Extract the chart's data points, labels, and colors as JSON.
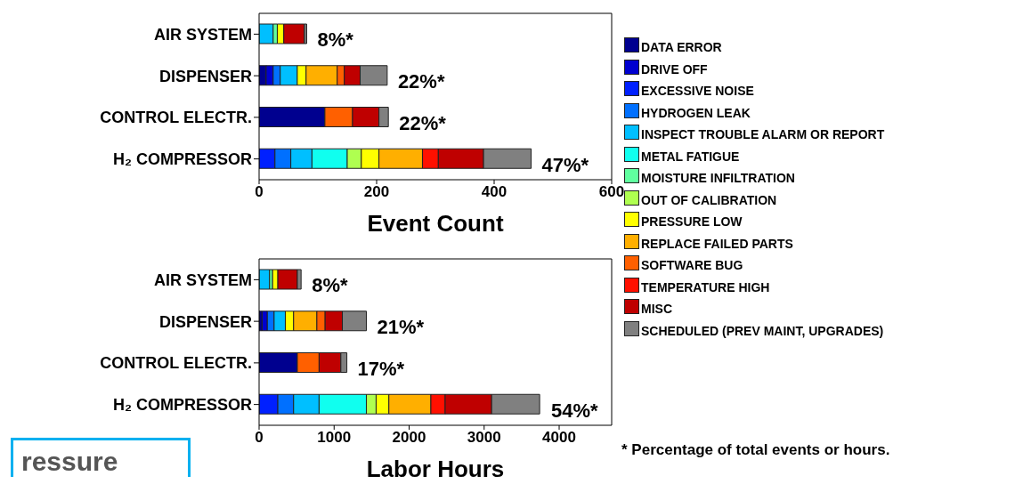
{
  "chart_data": [
    {
      "type": "bar",
      "orientation": "horizontal",
      "stacked": true,
      "xlabel": "Event Count",
      "categories": [
        "AIR SYSTEM",
        "DISPENSER",
        "CONTROL ELECTR.",
        "H₂ COMPRESSOR"
      ],
      "xlim": [
        0,
        600
      ],
      "xticks": [
        0,
        200,
        400,
        600
      ],
      "legend": "right",
      "annotations": [
        {
          "text": "8%*",
          "x": 81,
          "y": "AIR SYSTEM"
        },
        {
          "text": "22%*",
          "x": 218,
          "y": "DISPENSER"
        },
        {
          "text": "22%*",
          "x": 220,
          "y": "CONTROL ELECTR."
        },
        {
          "text": "47%*",
          "x": 463,
          "y": "H₂ COMPRESSOR"
        }
      ],
      "series": [
        {
          "name": "DATA ERROR",
          "color": "#00008f",
          "values": [
            null,
            12,
            112,
            null
          ]
        },
        {
          "name": "DRIVE OFF",
          "color": "#0000d0",
          "values": [
            null,
            12,
            null,
            null
          ]
        },
        {
          "name": "EXCESSIVE NOISE",
          "color": "#0020ff",
          "values": [
            null,
            null,
            null,
            27
          ]
        },
        {
          "name": "HYDROGEN LEAK",
          "color": "#0070ff",
          "values": [
            null,
            12,
            null,
            27
          ]
        },
        {
          "name": "INSPECT TROUBLE ALARM OR REPORT",
          "color": "#00bfff",
          "values": [
            24,
            29,
            null,
            36
          ]
        },
        {
          "name": "METAL FATIGUE",
          "color": "#10ffef",
          "values": [
            null,
            null,
            null,
            60
          ]
        },
        {
          "name": "MOISTURE INFILTRATION",
          "color": "#60ff9f",
          "values": [
            7,
            null,
            null,
            null
          ]
        },
        {
          "name": "OUT OF CALIBRATION",
          "color": "#afff50",
          "values": [
            null,
            null,
            null,
            24
          ]
        },
        {
          "name": "PRESSURE LOW",
          "color": "#ffff00",
          "values": [
            11,
            15,
            null,
            30
          ]
        },
        {
          "name": "REPLACE FAILED PARTS",
          "color": "#ffaf00",
          "values": [
            null,
            53,
            null,
            74
          ]
        },
        {
          "name": "SOFTWARE BUG",
          "color": "#ff6000",
          "values": [
            null,
            12,
            47,
            null
          ]
        },
        {
          "name": "TEMPERATURE HIGH",
          "color": "#ff1000",
          "values": [
            null,
            null,
            null,
            27
          ]
        },
        {
          "name": "MISC",
          "color": "#bf0000",
          "values": [
            35,
            27,
            45,
            77
          ]
        },
        {
          "name": "SCHEDULED (PREV MAINT, UPGRADES)",
          "color": "#808080",
          "values": [
            4,
            46,
            16,
            81
          ]
        }
      ]
    },
    {
      "type": "bar",
      "orientation": "horizontal",
      "stacked": true,
      "xlabel": "Labor Hours",
      "categories": [
        "AIR SYSTEM",
        "DISPENSER",
        "CONTROL ELECTR.",
        "H₂ COMPRESSOR"
      ],
      "xlim": [
        0,
        4700
      ],
      "xticks": [
        0,
        1000,
        2000,
        3000,
        4000
      ],
      "annotations": [
        "* Percentage of total events or hours.",
        "ressure",
        {
          "text": "8%*",
          "x": 560,
          "y": "AIR SYSTEM"
        },
        {
          "text": "21%*",
          "x": 1430,
          "y": "DISPENSER"
        },
        {
          "text": "17%*",
          "x": 1170,
          "y": "CONTROL ELECTR."
        },
        {
          "text": "54%*",
          "x": 3750,
          "y": "H₂ COMPRESSOR"
        }
      ],
      "series": [
        {
          "color": "#00008f",
          "values": [
            null,
            40,
            510,
            null
          ]
        },
        {
          "color": "#0000d0",
          "values": [
            null,
            70,
            null,
            null
          ]
        },
        {
          "color": "#0020ff",
          "values": [
            null,
            null,
            null,
            250
          ]
        },
        {
          "color": "#0070ff",
          "values": [
            null,
            90,
            null,
            210
          ]
        },
        {
          "color": "#00bfff",
          "values": [
            140,
            150,
            null,
            340
          ]
        },
        {
          "color": "#10ffef",
          "values": [
            null,
            null,
            null,
            630
          ]
        },
        {
          "color": "#60ff9f",
          "values": [
            40,
            null,
            null,
            null
          ]
        },
        {
          "color": "#afff50",
          "values": [
            null,
            null,
            null,
            130
          ]
        },
        {
          "color": "#ffff00",
          "values": [
            70,
            110,
            null,
            170
          ]
        },
        {
          "color": "#ffaf00",
          "values": [
            null,
            310,
            null,
            560
          ]
        },
        {
          "color": "#ff6000",
          "values": [
            null,
            110,
            290,
            null
          ]
        },
        {
          "color": "#ff1000",
          "values": [
            null,
            null,
            null,
            190
          ]
        },
        {
          "color": "#bf0000",
          "values": [
            260,
            230,
            290,
            620
          ]
        },
        {
          "color": "#808080",
          "values": [
            50,
            320,
            80,
            640
          ]
        }
      ]
    }
  ]
}
